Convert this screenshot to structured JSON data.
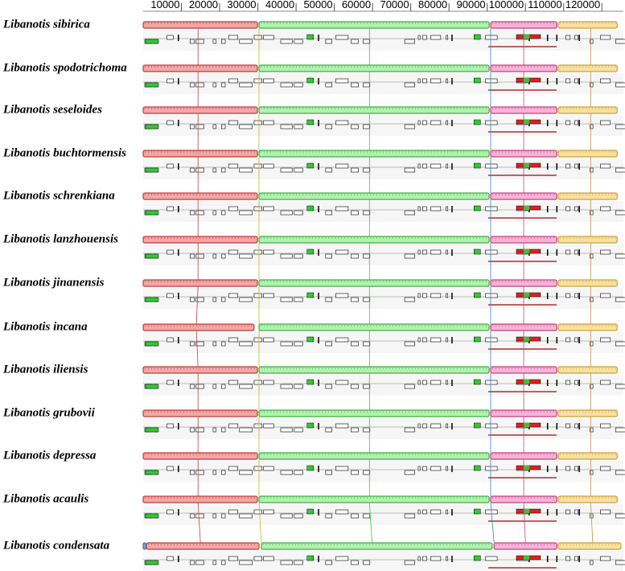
{
  "chart_data": {
    "type": "genome-alignment",
    "xlim": [
      0,
      125000
    ],
    "xticks": [
      10000,
      20000,
      30000,
      40000,
      50000,
      60000,
      70000,
      80000,
      90000,
      100000,
      110000,
      120000
    ],
    "genomes": [
      "Libanotis sibirica",
      "Libanotis spodotrichoma",
      "Libanotis seseloides",
      "Libanotis buchtormensis",
      "Libanotis schrenkiana",
      "Libanotis lanzhouensis",
      "Libanotis jinanensis",
      "Libanotis incana",
      "Libanotis iliensis",
      "Libanotis grubovii",
      "Libanotis depressa",
      "Libanotis acaulis",
      "Libanotis condensata"
    ],
    "lcbs": [
      {
        "color": "#f2a7a7",
        "edge": "#c03a3a",
        "ranges": [
          [
            0,
            29900
          ],
          [
            0,
            29900
          ],
          [
            0,
            29900
          ],
          [
            0,
            29900
          ],
          [
            0,
            29900
          ],
          [
            0,
            29900
          ],
          [
            0,
            29900
          ],
          [
            0,
            29000
          ],
          [
            0,
            29900
          ],
          [
            0,
            29900
          ],
          [
            0,
            29900
          ],
          [
            0,
            29900
          ],
          [
            840,
            30300
          ]
        ]
      },
      {
        "color": "#b2f0b2",
        "edge": "#3fae3f",
        "ranges": [
          [
            30300,
            90500
          ],
          [
            30300,
            90500
          ],
          [
            30300,
            90500
          ],
          [
            30300,
            90500
          ],
          [
            30300,
            90500
          ],
          [
            30300,
            90500
          ],
          [
            30300,
            90500
          ],
          [
            30300,
            90500
          ],
          [
            30300,
            90500
          ],
          [
            30300,
            90500
          ],
          [
            30300,
            90500
          ],
          [
            30300,
            90500
          ],
          [
            30900,
            91300
          ]
        ]
      },
      {
        "color": "#f7b3d6",
        "edge": "#c04080",
        "ranges": [
          [
            90900,
            108200
          ],
          [
            90900,
            108200
          ],
          [
            90900,
            108200
          ],
          [
            90900,
            108200
          ],
          [
            90900,
            108200
          ],
          [
            90900,
            108200
          ],
          [
            90900,
            108200
          ],
          [
            90900,
            108200
          ],
          [
            90900,
            108200
          ],
          [
            90900,
            108200
          ],
          [
            90900,
            108200
          ],
          [
            90900,
            108200
          ],
          [
            91800,
            108200
          ]
        ]
      },
      {
        "color": "#f9e0a0",
        "edge": "#c8a040",
        "ranges": [
          [
            108600,
            124000
          ],
          [
            108600,
            124000
          ],
          [
            108600,
            124000
          ],
          [
            108600,
            124000
          ],
          [
            108600,
            124000
          ],
          [
            108600,
            124000
          ],
          [
            108600,
            124000
          ],
          [
            108600,
            124000
          ],
          [
            108600,
            124000
          ],
          [
            108600,
            124000
          ],
          [
            108600,
            124000
          ],
          [
            108600,
            124000
          ],
          [
            108600,
            125000
          ]
        ]
      },
      {
        "color": "#7fb0e0",
        "edge": "#3070b0",
        "ranges": [
          null,
          null,
          null,
          null,
          null,
          null,
          null,
          null,
          null,
          null,
          null,
          null,
          [
            0,
            700
          ]
        ]
      }
    ]
  }
}
